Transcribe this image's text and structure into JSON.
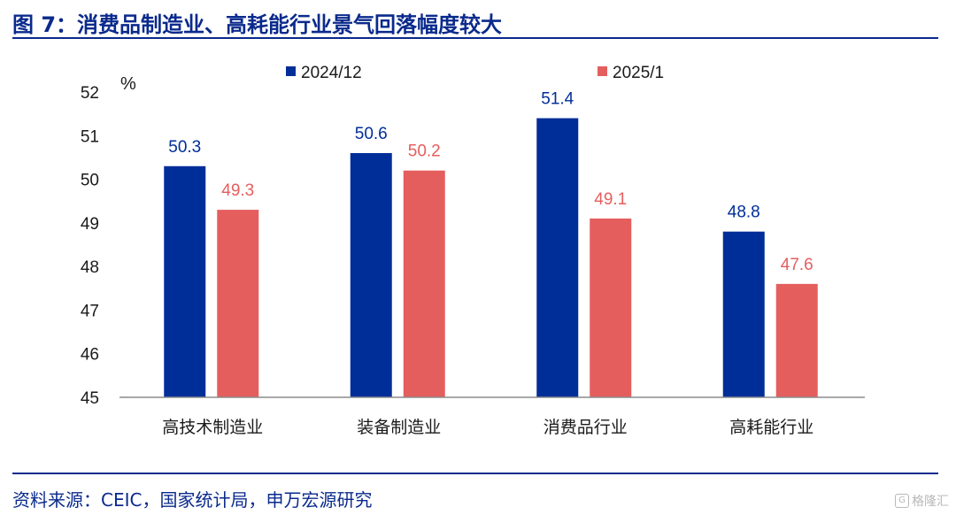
{
  "title": "图 7：消费品制造业、高耗能行业景气回落幅度较大",
  "source": "资料来源：CEIC，国家统计局，申万宏源研究",
  "watermark": {
    "icon": "logo-icon",
    "text": "格隆汇"
  },
  "colors": {
    "series1": "#002e99",
    "series2": "#e55e5e",
    "title": "#0a2a8c",
    "axis": "#1a1a1a"
  },
  "chart_data": {
    "type": "bar",
    "categories": [
      "高技术制造业",
      "装备制造业",
      "消费品行业",
      "高耗能行业"
    ],
    "series": [
      {
        "name": "2024/12",
        "values": [
          50.3,
          50.6,
          51.4,
          48.8
        ]
      },
      {
        "name": "2025/1",
        "values": [
          49.3,
          50.2,
          49.1,
          47.6
        ]
      }
    ],
    "ylabel": "%",
    "ylim": [
      45,
      52
    ],
    "yticks": [
      45,
      46,
      47,
      48,
      49,
      50,
      51,
      52
    ],
    "legend": "top",
    "grid": false,
    "data_labels": true
  }
}
